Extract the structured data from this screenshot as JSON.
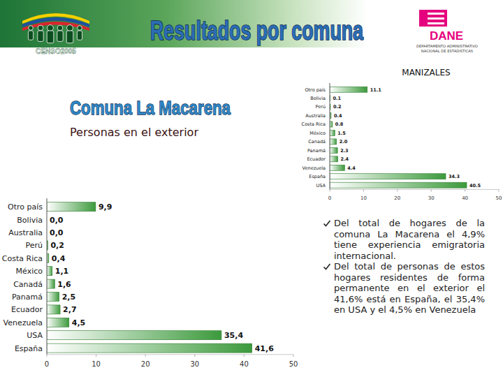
{
  "header": {
    "title": "Resultados por comuna",
    "logo_text": "CENSO2005",
    "agency": "DANE",
    "agency_name": [
      "DEPARTAMENTO ADMINISTRATIVO",
      "NACIONAL DE ESTADISTICAS"
    ]
  },
  "chart_data": [
    {
      "type": "bar",
      "orientation": "horizontal",
      "title": "MANIZALES",
      "categories": [
        "Otro país",
        "Bolivia",
        "Perú",
        "Australia",
        "Costa Rica",
        "México",
        "Canadá",
        "Panamá",
        "Ecuador",
        "Venezuela",
        "España",
        "USA"
      ],
      "values": [
        11.1,
        0.1,
        0.2,
        0.4,
        0.8,
        1.5,
        2.0,
        2.3,
        2.4,
        4.4,
        34.3,
        40.5
      ],
      "value_labels": [
        "11.1",
        "0.1",
        "0.2",
        "0.4",
        "0.8",
        "1.5",
        "2.0",
        "2.3",
        "2.4",
        "4.4",
        "34.3",
        "40.5"
      ],
      "data_labels": true,
      "color": "#3c9a3c",
      "xlim": [
        0,
        50
      ],
      "xticks": [
        0,
        10,
        20,
        30,
        40,
        50
      ],
      "grid": false
    },
    {
      "type": "bar",
      "orientation": "horizontal",
      "title": "Comuna La Macarena",
      "subtitle": "Personas en el exterior",
      "categories": [
        "Otro país",
        "Bolivia",
        "Australia",
        "Perú",
        "Costa Rica",
        "México",
        "Canadá",
        "Panamá",
        "Ecuador",
        "Venezuela",
        "USA",
        "España"
      ],
      "values": [
        9.9,
        0.0,
        0.0,
        0.2,
        0.4,
        1.1,
        1.6,
        2.5,
        2.7,
        4.5,
        35.4,
        41.6
      ],
      "value_labels": [
        "9,9",
        "0,0",
        "0,0",
        "0,2",
        "0,4",
        "1,1",
        "1,6",
        "2,5",
        "2,7",
        "4,5",
        "35,4",
        "41,6"
      ],
      "data_labels": true,
      "color": "#3c9a3c",
      "xlim": [
        0,
        50
      ],
      "xticks": [
        0,
        10,
        20,
        30,
        40,
        50
      ],
      "grid": false
    }
  ],
  "bullets": [
    "Del total de hogares de la comuna La Macarena el 4,9% tiene experiencia emigratoria internacional.",
    "Del total de personas de estos hogares residentes de forma permanente en el exterior el 41,6% está en España, el 35,4% en USA y el 4,5% en Venezuela"
  ]
}
